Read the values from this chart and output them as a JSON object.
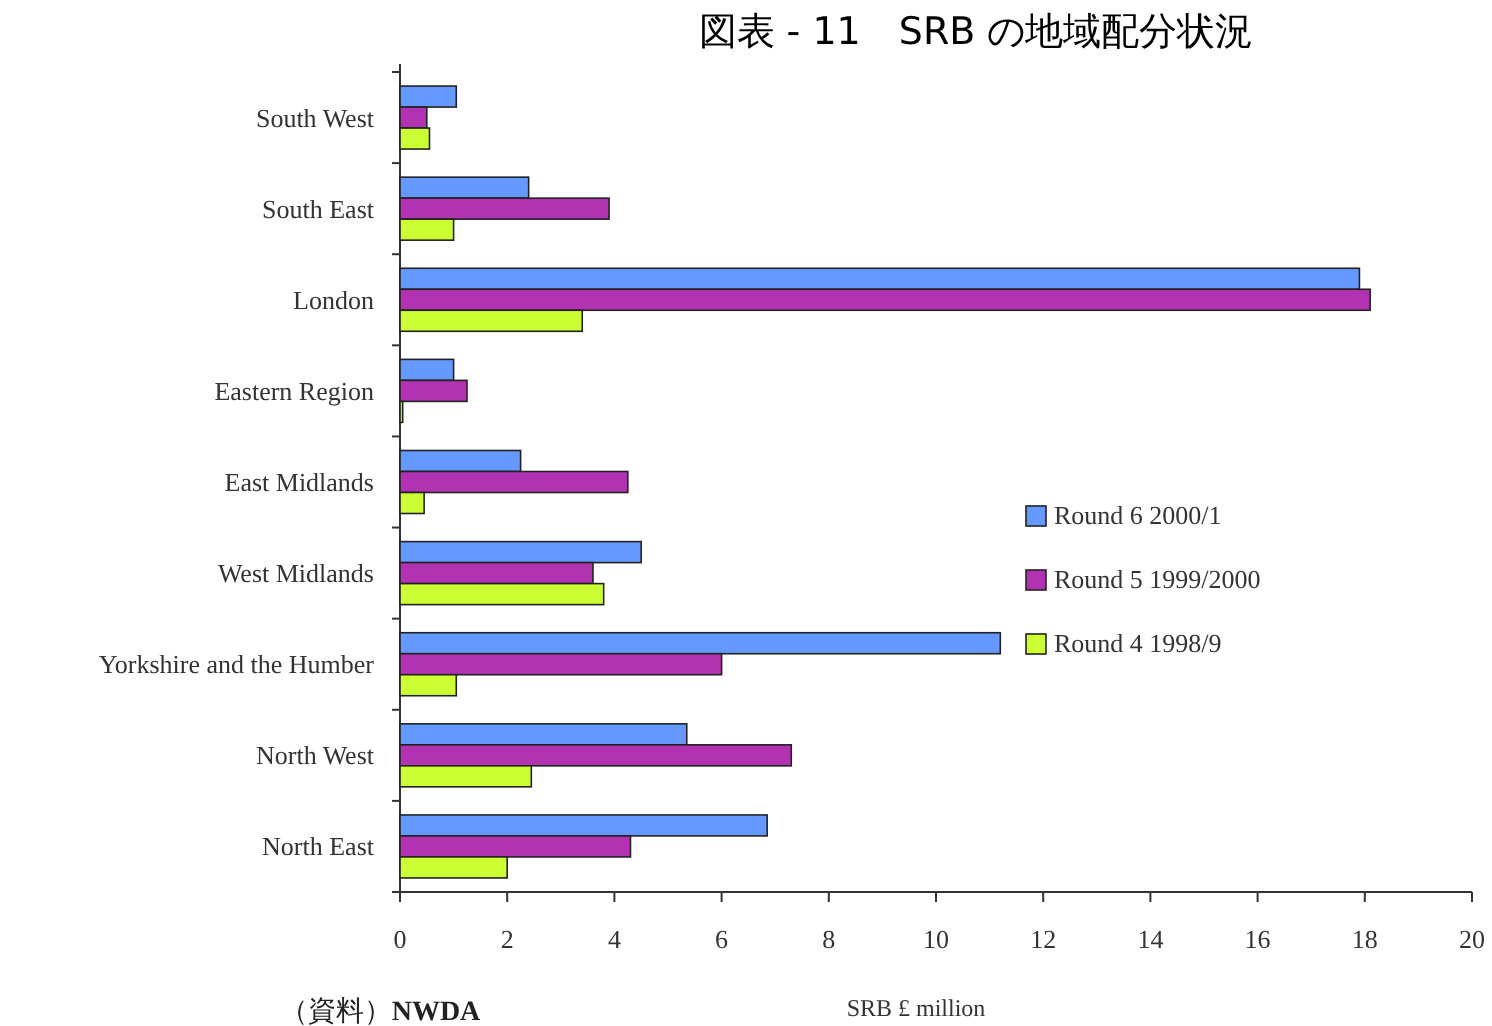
{
  "chart_data": {
    "type": "bar",
    "orientation": "horizontal",
    "title": "図表 - 11　SRB の地域配分状況",
    "xlabel": "SRB £ million",
    "categories": [
      "South West",
      "South East",
      "London",
      "Eastern Region",
      "East Midlands",
      "West Midlands",
      "Yorkshire and the Humber",
      "North West",
      "North East"
    ],
    "series": [
      {
        "name": "Round 6 2000/1",
        "color": "#6699ff",
        "values": [
          1.05,
          2.4,
          17.9,
          1.0,
          2.25,
          4.5,
          11.2,
          5.35,
          6.85
        ]
      },
      {
        "name": "Round 5 1999/2000",
        "color": "#b233b2",
        "values": [
          0.5,
          3.9,
          18.1,
          1.25,
          4.25,
          3.6,
          6.0,
          7.3,
          4.3
        ]
      },
      {
        "name": "Round 4 1998/9",
        "color": "#ccff33",
        "values": [
          0.55,
          1.0,
          3.4,
          0.05,
          0.45,
          3.8,
          1.05,
          2.45,
          2.0
        ]
      }
    ],
    "xlim": [
      0,
      20
    ],
    "xticks": [
      0,
      2,
      4,
      6,
      8,
      10,
      12,
      14,
      16,
      18,
      20
    ],
    "grid": false,
    "legend": "right",
    "annotations": [
      "（資料）**NWDA**"
    ]
  }
}
